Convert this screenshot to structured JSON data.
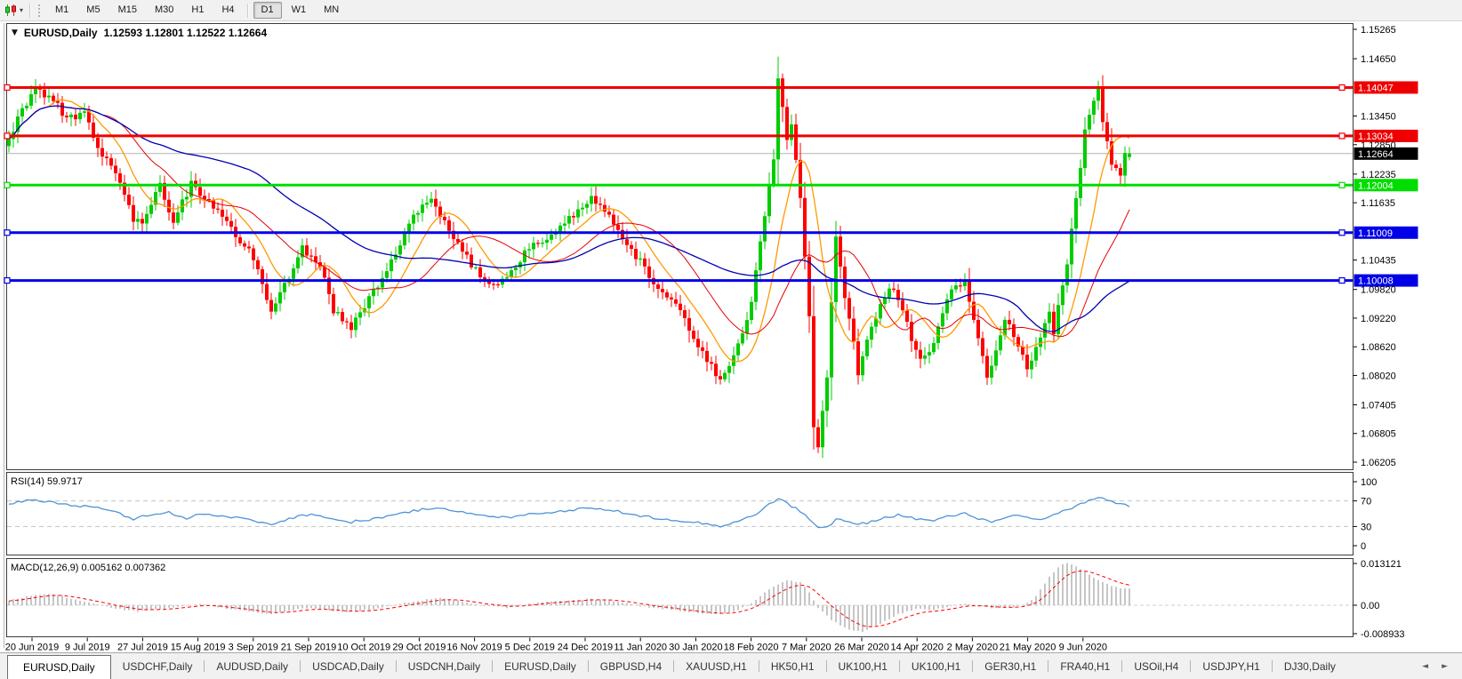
{
  "icons": {
    "title_marker": "▼",
    "toolbar_caret": "▾",
    "tab_prev": "◄",
    "tab_next": "►"
  },
  "toolbar": {
    "timeframes": [
      "M1",
      "M5",
      "M15",
      "M30",
      "H1",
      "H4",
      "D1",
      "W1",
      "MN"
    ],
    "active_timeframe": "D1"
  },
  "chart": {
    "symbol": "EURUSD,Daily",
    "quote_line": "1.12593 1.12801 1.12522 1.12664",
    "last_ohlc": [
      1.12593,
      1.12801,
      1.12522,
      1.12664
    ],
    "bar_count": 253,
    "y_ticks": [
      "1.15265",
      "1.14650",
      "1.13450",
      "1.12850",
      "1.12235",
      "1.11635",
      "1.10435",
      "1.09820",
      "1.09220",
      "1.08620",
      "1.08020",
      "1.07405",
      "1.06805",
      "1.06205"
    ],
    "price_lines": [
      {
        "label": "1.14047",
        "value": 1.14047,
        "color": "#ee0000"
      },
      {
        "label": "1.13034",
        "value": 1.13034,
        "color": "#ee0000"
      },
      {
        "label": "1.12004",
        "value": 1.12004,
        "color": "#00dd00"
      },
      {
        "label": "1.11009",
        "value": 1.11009,
        "color": "#0000e6"
      },
      {
        "label": "1.10008",
        "value": 1.10008,
        "color": "#0000e6"
      }
    ],
    "current_price": {
      "label": "1.12664",
      "value": 1.12664
    },
    "x_labels": [
      "20 Jun 2019",
      "9 Jul 2019",
      "27 Jul 2019",
      "15 Aug 2019",
      "3 Sep 2019",
      "21 Sep 2019",
      "10 Oct 2019",
      "29 Oct 2019",
      "16 Nov 2019",
      "5 Dec 2019",
      "24 Dec 2019",
      "11 Jan 2020",
      "30 Jan 2020",
      "18 Feb 2020",
      "7 Mar 2020",
      "26 Mar 2020",
      "14 Apr 2020",
      "2 May 2020",
      "21 May 2020",
      "9 Jun 2020"
    ],
    "colors": {
      "up": "#00cc00",
      "down": "#ff0000",
      "current_line": "#b4b4b4",
      "current_box": "#000000"
    },
    "moving_averages": [
      {
        "name": "ma-fast",
        "period": 10,
        "color": "#ff9900"
      },
      {
        "name": "ma-mid",
        "period": 22,
        "color": "#e60000"
      },
      {
        "name": "ma-slow",
        "period": 55,
        "color": "#0000b4"
      }
    ],
    "price_anchors": [
      [
        0,
        1.129
      ],
      [
        2,
        1.134
      ],
      [
        6,
        1.14
      ],
      [
        10,
        1.138
      ],
      [
        13,
        1.1335
      ],
      [
        17,
        1.1355
      ],
      [
        20,
        1.128
      ],
      [
        24,
        1.123
      ],
      [
        28,
        1.113
      ],
      [
        30,
        1.1115
      ],
      [
        34,
        1.1205
      ],
      [
        37,
        1.112
      ],
      [
        41,
        1.1205
      ],
      [
        44,
        1.117
      ],
      [
        48,
        1.114
      ],
      [
        52,
        1.1085
      ],
      [
        55,
        1.105
      ],
      [
        59,
        1.093
      ],
      [
        62,
        1.099
      ],
      [
        66,
        1.107
      ],
      [
        70,
        1.103
      ],
      [
        73,
        1.094
      ],
      [
        77,
        1.0905
      ],
      [
        80,
        1.095
      ],
      [
        84,
        1.1
      ],
      [
        88,
        1.108
      ],
      [
        91,
        1.114
      ],
      [
        95,
        1.117
      ],
      [
        98,
        1.112
      ],
      [
        102,
        1.106
      ],
      [
        106,
        1.101
      ],
      [
        109,
        1.099
      ],
      [
        113,
        1.102
      ],
      [
        116,
        1.106
      ],
      [
        120,
        1.1085
      ],
      [
        124,
        1.111
      ],
      [
        127,
        1.114
      ],
      [
        131,
        1.1175
      ],
      [
        134,
        1.115
      ],
      [
        138,
        1.109
      ],
      [
        142,
        1.104
      ],
      [
        145,
        1.1
      ],
      [
        149,
        1.096
      ],
      [
        152,
        1.092
      ],
      [
        156,
        1.085
      ],
      [
        160,
        1.079
      ],
      [
        162,
        1.0815
      ],
      [
        164,
        1.0865
      ],
      [
        167,
        1.095
      ],
      [
        169,
        1.109
      ],
      [
        172,
        1.125
      ],
      [
        173,
        1.143
      ],
      [
        174,
        1.136
      ],
      [
        175,
        1.129
      ],
      [
        176,
        1.133
      ],
      [
        178,
        1.118
      ],
      [
        179,
        1.105
      ],
      [
        180,
        1.092
      ],
      [
        181,
        1.07
      ],
      [
        182,
        1.0655
      ],
      [
        184,
        1.08
      ],
      [
        185,
        1.095
      ],
      [
        186,
        1.11
      ],
      [
        187,
        1.103
      ],
      [
        188,
        1.096
      ],
      [
        190,
        1.087
      ],
      [
        191,
        1.08
      ],
      [
        193,
        1.088
      ],
      [
        196,
        1.095
      ],
      [
        198,
        1.099
      ],
      [
        200,
        1.096
      ],
      [
        203,
        1.088
      ],
      [
        205,
        1.083
      ],
      [
        208,
        1.087
      ],
      [
        210,
        1.094
      ],
      [
        212,
        1.099
      ],
      [
        215,
        1.1
      ],
      [
        217,
        1.092
      ],
      [
        220,
        1.08
      ],
      [
        222,
        1.085
      ],
      [
        224,
        1.092
      ],
      [
        227,
        1.087
      ],
      [
        229,
        1.082
      ],
      [
        232,
        1.088
      ],
      [
        234,
        1.094
      ],
      [
        235,
        1.089
      ],
      [
        236,
        1.095
      ],
      [
        238,
        1.104
      ],
      [
        239,
        1.111
      ],
      [
        240,
        1.117
      ],
      [
        241,
        1.124
      ],
      [
        242,
        1.131
      ],
      [
        244,
        1.138
      ],
      [
        245,
        1.14
      ],
      [
        246,
        1.134
      ],
      [
        247,
        1.129
      ],
      [
        248,
        1.125
      ],
      [
        250,
        1.1215
      ],
      [
        251,
        1.127
      ],
      [
        252,
        1.12664
      ]
    ]
  },
  "rsi": {
    "label": "RSI(14) 59.9717",
    "color": "#4f93d8",
    "levels": [
      70,
      30
    ],
    "ticks": [
      {
        "label": "100",
        "value": 100
      },
      {
        "label": "70",
        "value": 70
      },
      {
        "label": "30",
        "value": 30
      },
      {
        "label": "0",
        "value": 0
      }
    ],
    "anchors": [
      [
        0,
        65
      ],
      [
        5,
        72
      ],
      [
        10,
        68
      ],
      [
        14,
        63
      ],
      [
        19,
        60
      ],
      [
        24,
        52
      ],
      [
        28,
        42
      ],
      [
        31,
        47
      ],
      [
        36,
        52
      ],
      [
        40,
        43
      ],
      [
        43,
        50
      ],
      [
        48,
        46
      ],
      [
        53,
        42
      ],
      [
        59,
        34
      ],
      [
        64,
        44
      ],
      [
        68,
        50
      ],
      [
        73,
        41
      ],
      [
        77,
        37
      ],
      [
        82,
        42
      ],
      [
        88,
        50
      ],
      [
        94,
        58
      ],
      [
        97,
        60
      ],
      [
        102,
        52
      ],
      [
        107,
        46
      ],
      [
        112,
        44
      ],
      [
        116,
        49
      ],
      [
        121,
        52
      ],
      [
        126,
        55
      ],
      [
        131,
        60
      ],
      [
        136,
        55
      ],
      [
        140,
        48
      ],
      [
        145,
        44
      ],
      [
        150,
        40
      ],
      [
        155,
        36
      ],
      [
        160,
        31
      ],
      [
        163,
        36
      ],
      [
        167,
        45
      ],
      [
        170,
        60
      ],
      [
        173,
        74
      ],
      [
        175,
        66
      ],
      [
        178,
        54
      ],
      [
        180,
        42
      ],
      [
        182,
        27
      ],
      [
        185,
        33
      ],
      [
        186,
        42
      ],
      [
        188,
        38
      ],
      [
        191,
        33
      ],
      [
        193,
        36
      ],
      [
        197,
        44
      ],
      [
        200,
        48
      ],
      [
        204,
        42
      ],
      [
        208,
        39
      ],
      [
        211,
        45
      ],
      [
        215,
        50
      ],
      [
        218,
        43
      ],
      [
        221,
        36
      ],
      [
        224,
        43
      ],
      [
        227,
        48
      ],
      [
        229,
        43
      ],
      [
        232,
        39
      ],
      [
        234,
        45
      ],
      [
        236,
        52
      ],
      [
        239,
        58
      ],
      [
        241,
        65
      ],
      [
        244,
        72
      ],
      [
        245,
        77
      ],
      [
        247,
        71
      ],
      [
        250,
        66
      ],
      [
        252,
        61
      ]
    ]
  },
  "macd": {
    "label": "MACD(12,26,9) 0.005162 0.007362",
    "hist_color": "#b8b8b8",
    "signal_color": "#ff0000",
    "ticks": [
      {
        "label": "0.013121",
        "value": 0.013121
      },
      {
        "label": "0.00",
        "value": 0
      },
      {
        "label": "-0.008933",
        "value": -0.008933
      }
    ],
    "anchors": [
      [
        0,
        0.0015
      ],
      [
        5,
        0.003
      ],
      [
        10,
        0.0035
      ],
      [
        14,
        0.002
      ],
      [
        19,
        0.0005
      ],
      [
        24,
        -0.001
      ],
      [
        29,
        -0.002
      ],
      [
        34,
        -0.0012
      ],
      [
        38,
        -0.0005
      ],
      [
        43,
        0.0005
      ],
      [
        48,
        -0.0008
      ],
      [
        53,
        -0.0018
      ],
      [
        59,
        -0.0027
      ],
      [
        64,
        -0.0015
      ],
      [
        68,
        -0.0008
      ],
      [
        73,
        -0.0018
      ],
      [
        77,
        -0.0022
      ],
      [
        82,
        -0.0012
      ],
      [
        88,
        0.0005
      ],
      [
        94,
        0.0018
      ],
      [
        97,
        0.0022
      ],
      [
        102,
        0.0012
      ],
      [
        107,
        -0.0002
      ],
      [
        112,
        -0.0008
      ],
      [
        116,
        0.0002
      ],
      [
        121,
        0.001
      ],
      [
        126,
        0.0015
      ],
      [
        131,
        0.002
      ],
      [
        136,
        0.0014
      ],
      [
        140,
        0.0002
      ],
      [
        145,
        -0.0008
      ],
      [
        150,
        -0.0016
      ],
      [
        155,
        -0.0024
      ],
      [
        160,
        -0.003
      ],
      [
        163,
        -0.002
      ],
      [
        167,
        0.0005
      ],
      [
        170,
        0.004
      ],
      [
        173,
        0.0065
      ],
      [
        175,
        0.0078
      ],
      [
        178,
        0.0072
      ],
      [
        180,
        0.004
      ],
      [
        182,
        -0.001
      ],
      [
        185,
        -0.0045
      ],
      [
        187,
        -0.0065
      ],
      [
        190,
        -0.008
      ],
      [
        192,
        -0.0085
      ],
      [
        194,
        -0.007
      ],
      [
        197,
        -0.005
      ],
      [
        200,
        -0.0028
      ],
      [
        204,
        -0.0012
      ],
      [
        208,
        -0.0015
      ],
      [
        211,
        -0.0006
      ],
      [
        215,
        0.0004
      ],
      [
        218,
        -0.0002
      ],
      [
        222,
        -0.001
      ],
      [
        226,
        -0.0006
      ],
      [
        228,
        0.0002
      ],
      [
        230,
        0.0015
      ],
      [
        231,
        0.003
      ],
      [
        232,
        0.0048
      ],
      [
        233,
        0.0068
      ],
      [
        234,
        0.0088
      ],
      [
        235,
        0.0105
      ],
      [
        236,
        0.012
      ],
      [
        237,
        0.0129
      ],
      [
        238,
        0.0131
      ],
      [
        239,
        0.0128
      ],
      [
        240,
        0.0122
      ],
      [
        241,
        0.0114
      ],
      [
        242,
        0.0105
      ],
      [
        243,
        0.0096
      ],
      [
        244,
        0.0087
      ],
      [
        245,
        0.0079
      ],
      [
        246,
        0.0072
      ],
      [
        247,
        0.0066
      ],
      [
        248,
        0.0061
      ],
      [
        249,
        0.0057
      ],
      [
        250,
        0.0054
      ],
      [
        252,
        0.0052
      ]
    ]
  },
  "tabs": {
    "active_index": 0,
    "items": [
      "EURUSD,Daily",
      "USDCHF,Daily",
      "AUDUSD,Daily",
      "USDCAD,Daily",
      "USDCNH,Daily",
      "EURUSD,Daily",
      "GBPUSD,H4",
      "XAUUSD,H1",
      "HK50,H1",
      "UK100,H1",
      "UK100,H1",
      "GER30,H1",
      "FRA40,H1",
      "USOil,H4",
      "USDJPY,H1",
      "DJ30,Daily"
    ]
  }
}
